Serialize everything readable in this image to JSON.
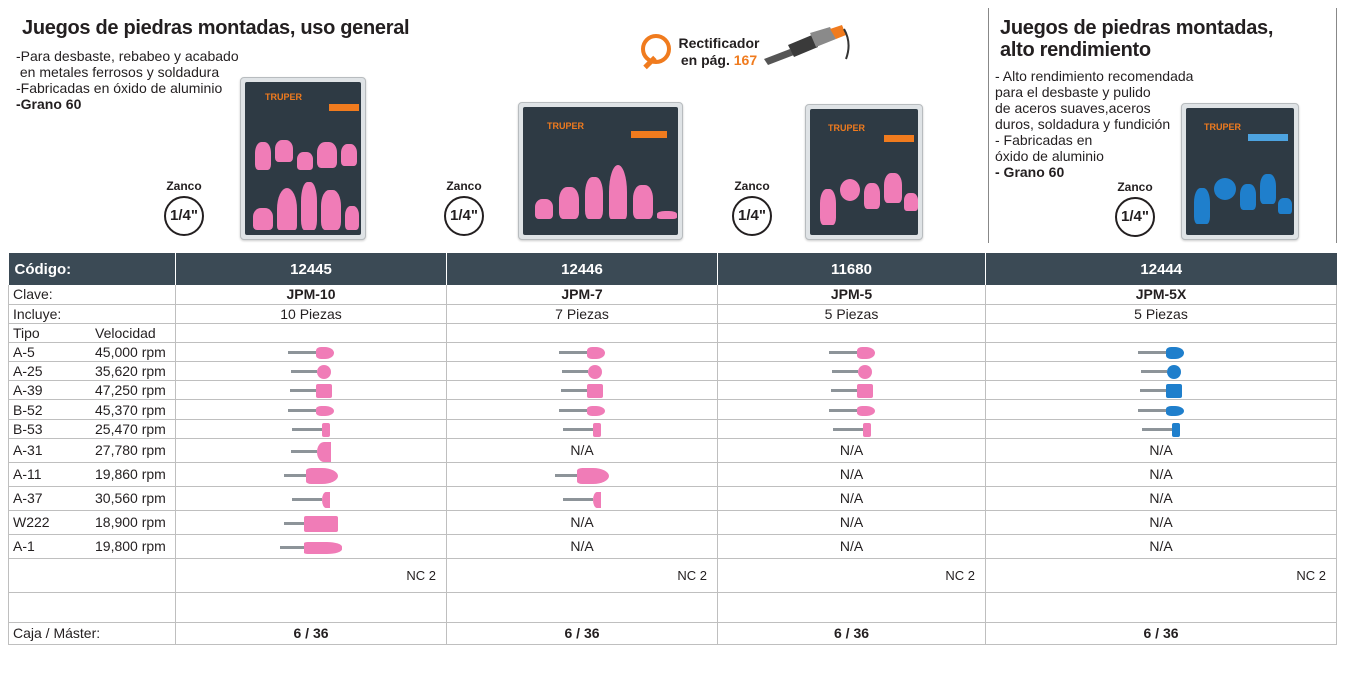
{
  "left_section": {
    "title": "Juegos de piedras montadas, uso general",
    "bullets": [
      "-Para desbaste, rebabeo y acabado",
      " en metales ferrosos y soldadura",
      "-Fabricadas en óxido de aluminio",
      "-Grano 60"
    ]
  },
  "right_section": {
    "title_line1": "Juegos de piedras montadas,",
    "title_line2": "alto rendimiento",
    "bullets": [
      "- Alto rendimiento recomendada",
      "para el desbaste y pulido",
      "de aceros suaves,aceros",
      "duros, soldadura y fundición",
      "- Fabricadas en",
      "óxido de aluminio",
      "- Grano 60"
    ]
  },
  "callout": {
    "line1": "Rectificador",
    "line2_prefix": "en pág. ",
    "page": "167"
  },
  "zanco": {
    "label": "Zanco",
    "size": "1/4\""
  },
  "package_brand": "TRUPER",
  "colors": {
    "header_bg": "#3b4a55",
    "accent": "#f07b1e",
    "pink_stone": "#f07cb7",
    "blue_stone": "#1f7fcc"
  },
  "table": {
    "header": {
      "label": "Código:",
      "codes": [
        "12445",
        "12446",
        "11680",
        "12444"
      ]
    },
    "clave": {
      "label": "Clave:",
      "values": [
        "JPM-10",
        "JPM-7",
        "JPM-5",
        "JPM-5X"
      ]
    },
    "incluye": {
      "label": "Incluye:",
      "values": [
        "10 Piezas",
        "7 Piezas",
        "5 Piezas",
        "5 Piezas"
      ]
    },
    "tipo_label": "Tipo",
    "velocidad_label": "Velocidad",
    "rows": [
      {
        "tipo": "A-5",
        "velocidad": "45,000 rpm",
        "cells": [
          "img",
          "img",
          "img",
          "img"
        ]
      },
      {
        "tipo": "A-25",
        "velocidad": "35,620 rpm",
        "cells": [
          "img",
          "img",
          "img",
          "img"
        ]
      },
      {
        "tipo": "A-39",
        "velocidad": "47,250 rpm",
        "cells": [
          "img",
          "img",
          "img",
          "img"
        ]
      },
      {
        "tipo": "B-52",
        "velocidad": "45,370 rpm",
        "cells": [
          "img",
          "img",
          "img",
          "img"
        ]
      },
      {
        "tipo": "B-53",
        "velocidad": "25,470 rpm",
        "cells": [
          "img",
          "img",
          "img",
          "img"
        ]
      },
      {
        "tipo": "A-31",
        "velocidad": "27,780 rpm",
        "cells": [
          "img",
          "N/A",
          "N/A",
          "N/A"
        ]
      },
      {
        "tipo": "A-11",
        "velocidad": "19,860 rpm",
        "cells": [
          "img",
          "img",
          "N/A",
          "N/A"
        ]
      },
      {
        "tipo": "A-37",
        "velocidad": "30,560 rpm",
        "cells": [
          "img",
          "img",
          "N/A",
          "N/A"
        ]
      },
      {
        "tipo": "W222",
        "velocidad": "18,900 rpm",
        "cells": [
          "img",
          "N/A",
          "N/A",
          "N/A"
        ]
      },
      {
        "tipo": "A-1",
        "velocidad": "19,800 rpm",
        "cells": [
          "img",
          "N/A",
          "N/A",
          "N/A"
        ]
      }
    ],
    "nc": [
      "NC 2",
      "NC 2",
      "NC 2",
      "NC 2"
    ],
    "caja": {
      "label": "Caja / Máster:",
      "values": [
        "6 / 36",
        "6 / 36",
        "6 / 36",
        "6 / 36"
      ]
    }
  }
}
